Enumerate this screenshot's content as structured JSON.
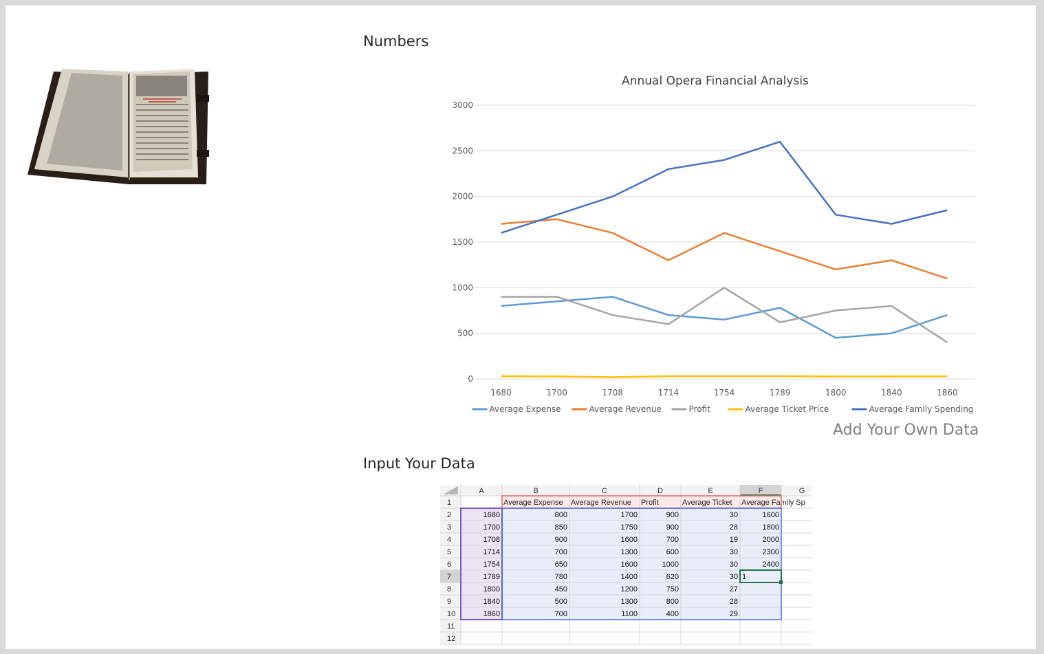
{
  "headings": {
    "numbers": "Numbers",
    "input": "Input Your Data",
    "add_data": "Add Your Own Data"
  },
  "image": {
    "icon": "old-open-book-icon"
  },
  "chart_data": {
    "type": "line",
    "title": "Annual Opera Financial Analysis",
    "categories": [
      "1680",
      "1700",
      "1708",
      "1714",
      "1754",
      "1789",
      "1800",
      "1840",
      "1860"
    ],
    "ylim": [
      0,
      3000
    ],
    "yticks": [
      0,
      500,
      1000,
      1500,
      2000,
      2500,
      3000
    ],
    "grid": true,
    "legend_position": "bottom",
    "series": [
      {
        "name": "Average Expense",
        "color": "#5b9bd5",
        "values": [
          800,
          850,
          900,
          700,
          650,
          780,
          450,
          500,
          700
        ]
      },
      {
        "name": "Average Revenue",
        "color": "#ed7d31",
        "values": [
          1700,
          1750,
          1600,
          1300,
          1600,
          1400,
          1200,
          1300,
          1100
        ]
      },
      {
        "name": "Profit",
        "color": "#a5a5a5",
        "values": [
          900,
          900,
          700,
          600,
          1000,
          620,
          750,
          800,
          400
        ]
      },
      {
        "name": "Average Ticket Price",
        "color": "#ffc000",
        "values": [
          30,
          28,
          19,
          30,
          30,
          30,
          27,
          28,
          29
        ]
      },
      {
        "name": "Average Family Spending",
        "color": "#4472c4",
        "values": [
          1600,
          1800,
          2000,
          2300,
          2400,
          2600,
          1800,
          1700,
          1850
        ]
      }
    ]
  },
  "spreadsheet": {
    "column_letters": [
      "A",
      "B",
      "C",
      "D",
      "E",
      "F",
      "G"
    ],
    "row_numbers": [
      "1",
      "2",
      "3",
      "4",
      "5",
      "6",
      "7",
      "8",
      "9",
      "10",
      "11",
      "12"
    ],
    "active_column": "F",
    "active_row": "7",
    "header_row": [
      "",
      "Average Expense",
      "Average Revenue",
      "Profit",
      "Average Ticket",
      "Average Family Sp",
      ""
    ],
    "rows": [
      [
        "1680",
        "800",
        "1700",
        "900",
        "30",
        "1600",
        ""
      ],
      [
        "1700",
        "850",
        "1750",
        "900",
        "28",
        "1800",
        ""
      ],
      [
        "1708",
        "900",
        "1600",
        "700",
        "19",
        "2000",
        ""
      ],
      [
        "1714",
        "700",
        "1300",
        "600",
        "30",
        "2300",
        ""
      ],
      [
        "1754",
        "650",
        "1600",
        "1000",
        "30",
        "2400",
        ""
      ],
      [
        "1789",
        "780",
        "1400",
        "620",
        "30",
        "1",
        ""
      ],
      [
        "1800",
        "450",
        "1200",
        "750",
        "27",
        "",
        ""
      ],
      [
        "1840",
        "500",
        "1300",
        "800",
        "28",
        "",
        ""
      ],
      [
        "1860",
        "700",
        "1100",
        "400",
        "29",
        "",
        ""
      ],
      [
        "",
        "",
        "",
        "",
        "",
        "",
        ""
      ],
      [
        "",
        "",
        "",
        "",
        "",
        "",
        ""
      ]
    ]
  }
}
